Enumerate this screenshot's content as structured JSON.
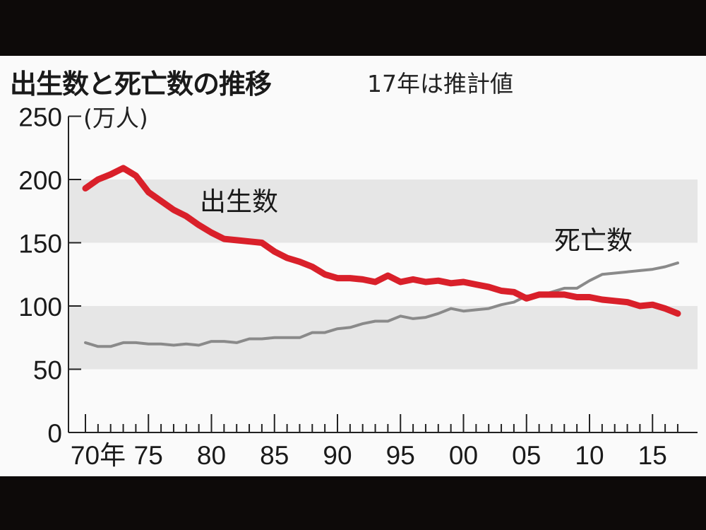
{
  "header": {
    "title": "出生数と死亡数の推移",
    "subtitle": "17年は推計値"
  },
  "colors": {
    "births": "#d9202a",
    "deaths": "#8a8a8a",
    "band": "#e6e6e6",
    "background": "#fafafa"
  },
  "chart_data": {
    "type": "line",
    "title": "出生数と死亡数の推移",
    "subtitle": "17年は推計値",
    "xlabel": "",
    "ylabel": "(万人)",
    "ylim": [
      0,
      250
    ],
    "yticks": [
      0,
      50,
      100,
      150,
      200,
      250
    ],
    "xtick_labels": [
      "70年",
      "75",
      "80",
      "85",
      "90",
      "95",
      "00",
      "05",
      "10",
      "15"
    ],
    "grid": "alternating gray bands 50-100 and 150-200",
    "legend": "inline labels",
    "x": [
      1970,
      1971,
      1972,
      1973,
      1974,
      1975,
      1976,
      1977,
      1978,
      1979,
      1980,
      1981,
      1982,
      1983,
      1984,
      1985,
      1986,
      1987,
      1988,
      1989,
      1990,
      1991,
      1992,
      1993,
      1994,
      1995,
      1996,
      1997,
      1998,
      1999,
      2000,
      2001,
      2002,
      2003,
      2004,
      2005,
      2006,
      2007,
      2008,
      2009,
      2010,
      2011,
      2012,
      2013,
      2014,
      2015,
      2016,
      2017
    ],
    "series": [
      {
        "name": "出生数",
        "values": [
          193,
          200,
          204,
          209,
          203,
          190,
          183,
          176,
          171,
          164,
          158,
          153,
          152,
          151,
          150,
          143,
          138,
          135,
          131,
          125,
          122,
          122,
          121,
          119,
          124,
          119,
          121,
          119,
          120,
          118,
          119,
          117,
          115,
          112,
          111,
          106,
          109,
          109,
          109,
          107,
          107,
          105,
          104,
          103,
          100,
          101,
          98,
          94
        ]
      },
      {
        "name": "死亡数",
        "values": [
          71,
          68,
          68,
          71,
          71,
          70,
          70,
          69,
          70,
          69,
          72,
          72,
          71,
          74,
          74,
          75,
          75,
          75,
          79,
          79,
          82,
          83,
          86,
          88,
          88,
          92,
          90,
          91,
          94,
          98,
          96,
          97,
          98,
          101,
          103,
          108,
          108,
          111,
          114,
          114,
          120,
          125,
          126,
          127,
          128,
          129,
          131,
          134
        ]
      }
    ]
  },
  "labels": {
    "births": "出生数",
    "deaths": "死亡数",
    "unit": "(万人)"
  }
}
